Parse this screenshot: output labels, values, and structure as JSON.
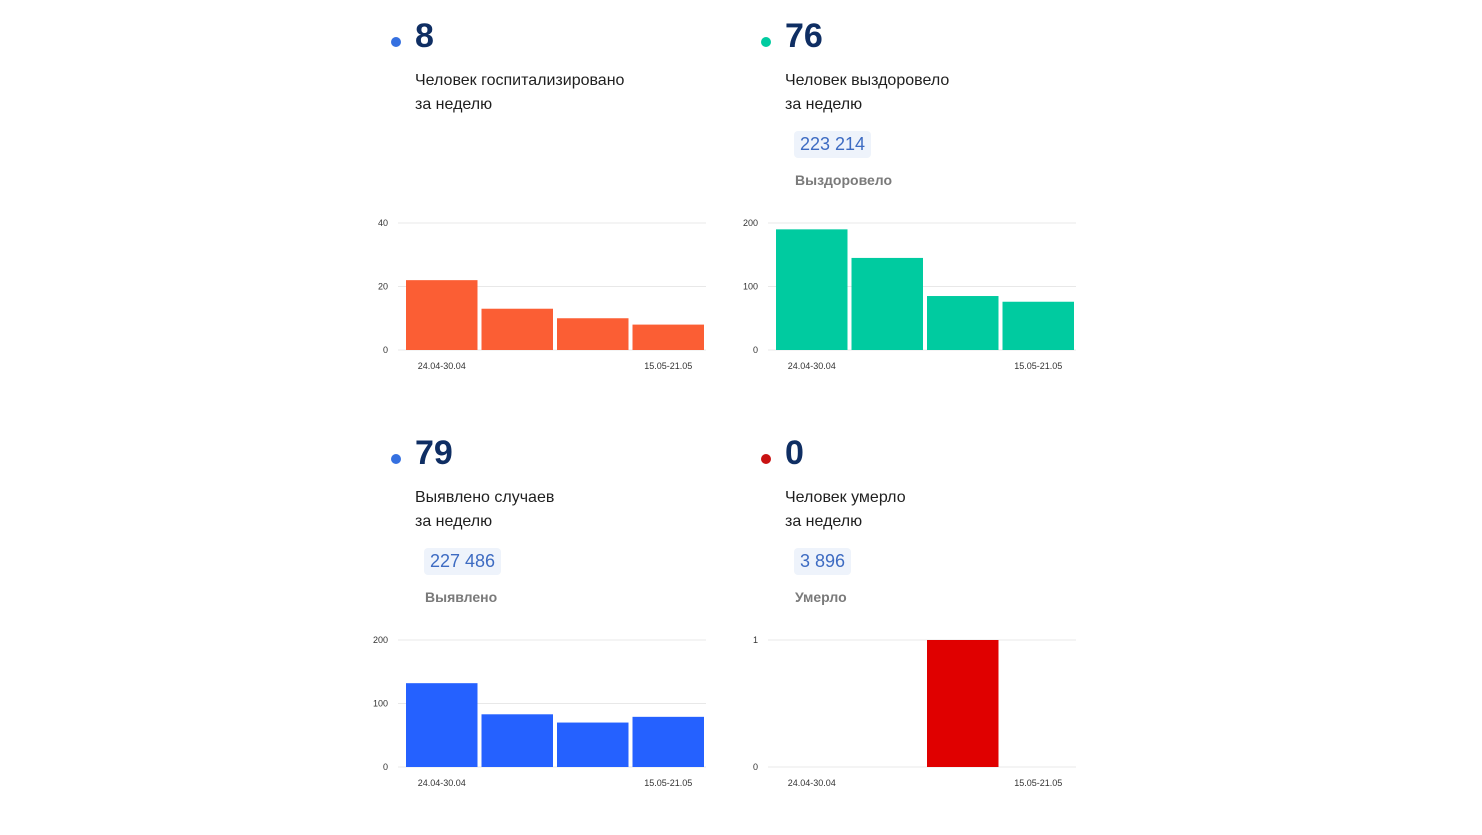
{
  "cards": [
    {
      "id": "hosp",
      "big": "8",
      "line1": "Человек госпитализировано",
      "line2": "за неделю",
      "total": "",
      "total_label": "",
      "color": "#fb5e34",
      "dot_color": "#3570e0"
    },
    {
      "id": "recov",
      "big": "76",
      "line1": "Человек выздоровело",
      "line2": "за неделю",
      "total": "223 214",
      "total_label": "Выздоровело",
      "color": "#00cba0",
      "dot_color": "#00cba0"
    },
    {
      "id": "cases",
      "big": "79",
      "line1": "Выявлено случаев",
      "line2": "за неделю",
      "total": "227 486",
      "total_label": "Выявлено",
      "color": "#2561ff",
      "dot_color": "#3570e0"
    },
    {
      "id": "deaths",
      "big": "0",
      "line1": "Человек умерло",
      "line2": "за неделю",
      "total": "3 896",
      "total_label": "Умерло",
      "color": "#e00000",
      "dot_color": "#c91212"
    }
  ],
  "chart_data": [
    {
      "type": "bar",
      "categories": [
        "24.04-30.04",
        "",
        "",
        "15.05-21.05"
      ],
      "values": [
        22,
        13,
        10,
        8
      ],
      "ylim": [
        0,
        40
      ],
      "yticks": [
        0,
        20,
        40
      ],
      "color": "#fb5e34",
      "grid": true
    },
    {
      "type": "bar",
      "categories": [
        "24.04-30.04",
        "",
        "",
        "15.05-21.05"
      ],
      "values": [
        190,
        145,
        85,
        76
      ],
      "ylim": [
        0,
        200
      ],
      "yticks": [
        0,
        100,
        200
      ],
      "color": "#00cba0",
      "grid": true
    },
    {
      "type": "bar",
      "categories": [
        "24.04-30.04",
        "",
        "",
        "15.05-21.05"
      ],
      "values": [
        132,
        83,
        70,
        79
      ],
      "ylim": [
        0,
        200
      ],
      "yticks": [
        0,
        100,
        200
      ],
      "color": "#2561ff",
      "grid": true
    },
    {
      "type": "bar",
      "categories": [
        "24.04-30.04",
        "",
        "",
        "15.05-21.05"
      ],
      "values": [
        0,
        0,
        1,
        0
      ],
      "ylim": [
        0,
        1
      ],
      "yticks": [
        0,
        1
      ],
      "color": "#e00000",
      "grid": true
    }
  ]
}
